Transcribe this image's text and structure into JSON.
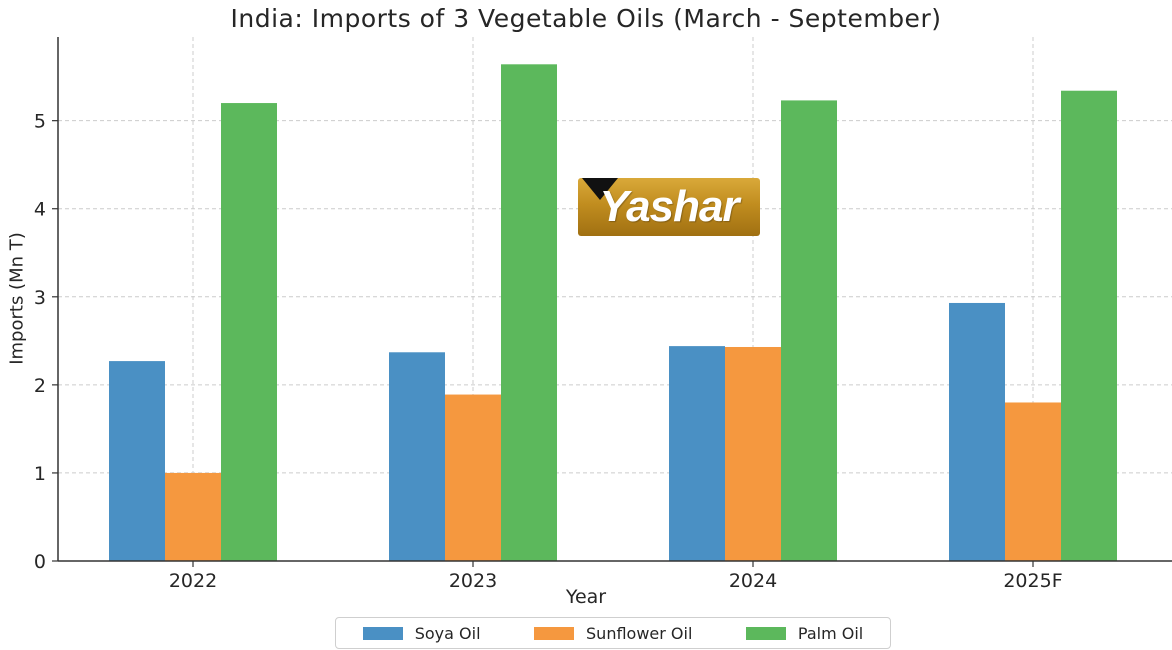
{
  "chart_data": {
    "type": "bar",
    "title": "India: Imports of 3 Vegetable Oils (March - September)",
    "xlabel": "Year",
    "ylabel": "Imports (Mn T)",
    "categories": [
      "2022",
      "2023",
      "2024",
      "2025F"
    ],
    "ylim": [
      0,
      5.95
    ],
    "yticks": [
      0,
      1,
      2,
      3,
      4,
      5
    ],
    "grid": true,
    "legend_position": "bottom",
    "series": [
      {
        "name": "Soya Oil",
        "color": "#4a90c4",
        "values": [
          2.27,
          2.37,
          2.44,
          2.93
        ]
      },
      {
        "name": "Sunflower Oil",
        "color": "#f5983f",
        "values": [
          1.0,
          1.89,
          2.43,
          1.8
        ]
      },
      {
        "name": "Palm Oil",
        "color": "#5cb85c",
        "values": [
          5.2,
          5.64,
          5.23,
          5.34
        ]
      }
    ]
  },
  "logo": {
    "text": "Yashar",
    "accent_color": "#c18d1f"
  }
}
